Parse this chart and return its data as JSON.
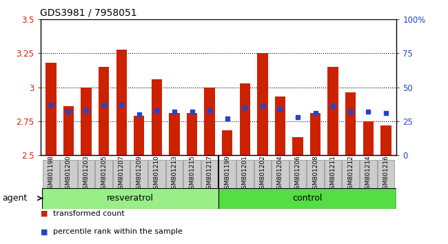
{
  "title": "GDS3981 / 7958051",
  "samples": [
    "GSM801198",
    "GSM801200",
    "GSM801203",
    "GSM801205",
    "GSM801207",
    "GSM801209",
    "GSM801210",
    "GSM801213",
    "GSM801215",
    "GSM801217",
    "GSM801199",
    "GSM801201",
    "GSM801202",
    "GSM801204",
    "GSM801206",
    "GSM801208",
    "GSM801211",
    "GSM801212",
    "GSM801214",
    "GSM801216"
  ],
  "bar_values": [
    3.18,
    2.86,
    3.0,
    3.15,
    3.28,
    2.79,
    3.06,
    2.81,
    2.81,
    3.0,
    2.68,
    3.03,
    3.25,
    2.93,
    2.63,
    2.81,
    3.15,
    2.96,
    2.75,
    2.72
  ],
  "blue_values": [
    2.87,
    2.82,
    2.83,
    2.87,
    2.87,
    2.8,
    2.83,
    2.82,
    2.82,
    2.83,
    2.77,
    2.85,
    2.86,
    2.84,
    2.78,
    2.81,
    2.86,
    2.82,
    2.82,
    2.81
  ],
  "resveratrol_n": 10,
  "control_n": 10,
  "resveratrol_label": "resveratrol",
  "control_label": "control",
  "resveratrol_color": "#99ee88",
  "control_color": "#55dd44",
  "group_row_label": "agent",
  "ymin": 2.5,
  "ymax": 3.5,
  "yticks": [
    2.5,
    2.75,
    3.0,
    3.25,
    3.5
  ],
  "ytick_labels": [
    "2.5",
    "2.75",
    "3",
    "3.25",
    "3.5"
  ],
  "right_yticks": [
    0,
    25,
    50,
    75,
    100
  ],
  "right_ytick_labels": [
    "0",
    "25",
    "50",
    "75",
    "100%"
  ],
  "bar_color": "#cc2200",
  "blue_color": "#2244cc",
  "grid_dotted_color": "#000000",
  "tick_label_bg": "#cccccc",
  "legend_items": [
    {
      "label": "transformed count",
      "color": "#cc2200"
    },
    {
      "label": "percentile rank within the sample",
      "color": "#2244cc"
    }
  ]
}
